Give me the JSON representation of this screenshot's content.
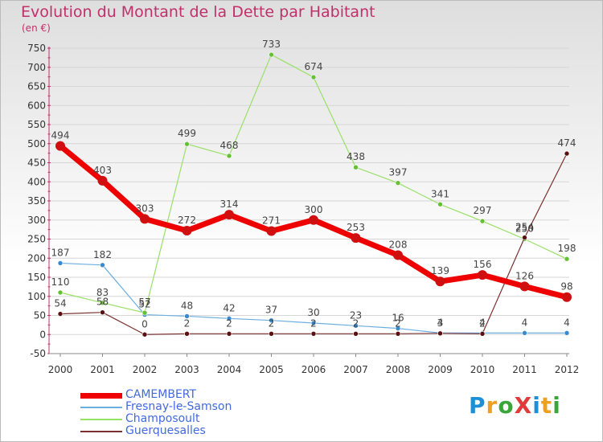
{
  "title": "Evolution du Montant de la Dette par Habitant",
  "subtitle": "(en €)",
  "logo": {
    "text": "ProXiti",
    "colors": [
      "#1e8fd6",
      "#f0a020",
      "#3aa53a",
      "#e03a3a",
      "#1e8fd6",
      "#f0a020",
      "#3aa53a"
    ]
  },
  "chart_data": {
    "type": "line",
    "title": "Evolution du Montant de la Dette par Habitant",
    "ylabel": "(en €)",
    "xlabel": "",
    "x": [
      "2000",
      "2001",
      "2002",
      "2003",
      "2004",
      "2005",
      "2006",
      "2007",
      "2008",
      "2009",
      "2010",
      "2011",
      "2012"
    ],
    "ylim": [
      -50,
      750
    ],
    "yticks": [
      -50,
      0,
      50,
      100,
      150,
      200,
      250,
      300,
      350,
      400,
      450,
      500,
      550,
      600,
      650,
      700,
      750
    ],
    "grid": "horizontal",
    "legend": "bottom-left",
    "series": [
      {
        "name": "CAMEMBERT",
        "color": "#ee0000",
        "marker": "#d01010",
        "width": 7,
        "r": 6,
        "values": [
          494,
          403,
          303,
          272,
          314,
          271,
          300,
          253,
          208,
          139,
          156,
          126,
          98
        ]
      },
      {
        "name": "Fresnay-le-Samson",
        "color": "#6aaee0",
        "marker": "#3a8ad0",
        "width": 1.2,
        "r": 3,
        "values": [
          187,
          182,
          52,
          48,
          42,
          37,
          30,
          23,
          16,
          4,
          4,
          4,
          4
        ]
      },
      {
        "name": "Champosoult",
        "color": "#99e066",
        "marker": "#66c033",
        "width": 1.2,
        "r": 3,
        "values": [
          110,
          83,
          57,
          null,
          468,
          733,
          674,
          438,
          397,
          341,
          297,
          250,
          198
        ]
      },
      {
        "name": "Guerquesalles",
        "color": "#7a3030",
        "marker": "#5a1010",
        "width": 1.2,
        "r": 3,
        "values": [
          54,
          58,
          0,
          2,
          2,
          2,
          2,
          2,
          2,
          3,
          2,
          254,
          474
        ]
      }
    ],
    "extra_points": [
      {
        "series": "Champosoult",
        "x": "2003",
        "value": 499
      }
    ],
    "labels": [
      {
        "series": "CAMEMBERT",
        "x": "2000",
        "text": "494"
      },
      {
        "series": "CAMEMBERT",
        "x": "2001",
        "text": "403"
      },
      {
        "series": "CAMEMBERT",
        "x": "2002",
        "text": "303"
      },
      {
        "series": "CAMEMBERT",
        "x": "2003",
        "text": "272"
      },
      {
        "series": "CAMEMBERT",
        "x": "2004",
        "text": "314"
      },
      {
        "series": "CAMEMBERT",
        "x": "2005",
        "text": "271"
      },
      {
        "series": "CAMEMBERT",
        "x": "2006",
        "text": "300"
      },
      {
        "series": "CAMEMBERT",
        "x": "2007",
        "text": "253"
      },
      {
        "series": "CAMEMBERT",
        "x": "2008",
        "text": "208"
      },
      {
        "series": "CAMEMBERT",
        "x": "2009",
        "text": "139"
      },
      {
        "series": "CAMEMBERT",
        "x": "2010",
        "text": "156"
      },
      {
        "series": "CAMEMBERT",
        "x": "2011",
        "text": "126"
      },
      {
        "series": "CAMEMBERT",
        "x": "2012",
        "text": "98"
      },
      {
        "series": "Fresnay-le-Samson",
        "x": "2000",
        "text": "187"
      },
      {
        "series": "Fresnay-le-Samson",
        "x": "2001",
        "text": "182"
      },
      {
        "series": "Fresnay-le-Samson",
        "x": "2002",
        "text": "52"
      },
      {
        "series": "Fresnay-le-Samson",
        "x": "2003",
        "text": "48"
      },
      {
        "series": "Fresnay-le-Samson",
        "x": "2004",
        "text": "42"
      },
      {
        "series": "Fresnay-le-Samson",
        "x": "2005",
        "text": "37"
      },
      {
        "series": "Fresnay-le-Samson",
        "x": "2006",
        "text": "30"
      },
      {
        "series": "Fresnay-le-Samson",
        "x": "2007",
        "text": "23"
      },
      {
        "series": "Fresnay-le-Samson",
        "x": "2008",
        "text": "16"
      },
      {
        "series": "Fresnay-le-Samson",
        "x": "2009",
        "text": "4"
      },
      {
        "series": "Fresnay-le-Samson",
        "x": "2010",
        "text": "4"
      },
      {
        "series": "Fresnay-le-Samson",
        "x": "2011",
        "text": "4"
      },
      {
        "series": "Fresnay-le-Samson",
        "x": "2012",
        "text": "4"
      },
      {
        "series": "Champosoult",
        "x": "2000",
        "text": "110"
      },
      {
        "series": "Champosoult",
        "x": "2001",
        "text": "83"
      },
      {
        "series": "Champosoult",
        "x": "2002",
        "text": "57"
      },
      {
        "series": "Champosoult",
        "x": "2003",
        "text": "499"
      },
      {
        "series": "Champosoult",
        "x": "2004",
        "text": "468"
      },
      {
        "series": "Champosoult",
        "x": "2005",
        "text": "733"
      },
      {
        "series": "Champosoult",
        "x": "2006",
        "text": "674"
      },
      {
        "series": "Champosoult",
        "x": "2007",
        "text": "438"
      },
      {
        "series": "Champosoult",
        "x": "2008",
        "text": "397"
      },
      {
        "series": "Champosoult",
        "x": "2009",
        "text": "341"
      },
      {
        "series": "Champosoult",
        "x": "2010",
        "text": "297"
      },
      {
        "series": "Champosoult",
        "x": "2011",
        "text": "250"
      },
      {
        "series": "Champosoult",
        "x": "2012",
        "text": "198"
      },
      {
        "series": "Guerquesalles",
        "x": "2000",
        "text": "54"
      },
      {
        "series": "Guerquesalles",
        "x": "2001",
        "text": "58"
      },
      {
        "series": "Guerquesalles",
        "x": "2002",
        "text": "0"
      },
      {
        "series": "Guerquesalles",
        "x": "2003",
        "text": "2"
      },
      {
        "series": "Guerquesalles",
        "x": "2004",
        "text": "2"
      },
      {
        "series": "Guerquesalles",
        "x": "2005",
        "text": "2"
      },
      {
        "series": "Guerquesalles",
        "x": "2006",
        "text": "2"
      },
      {
        "series": "Guerquesalles",
        "x": "2007",
        "text": "2"
      },
      {
        "series": "Guerquesalles",
        "x": "2008",
        "text": "2"
      },
      {
        "series": "Guerquesalles",
        "x": "2009",
        "text": "3"
      },
      {
        "series": "Guerquesalles",
        "x": "2010",
        "text": "2"
      },
      {
        "series": "Guerquesalles",
        "x": "2011",
        "text": "254"
      },
      {
        "series": "Guerquesalles",
        "x": "2012",
        "text": "474"
      }
    ]
  }
}
